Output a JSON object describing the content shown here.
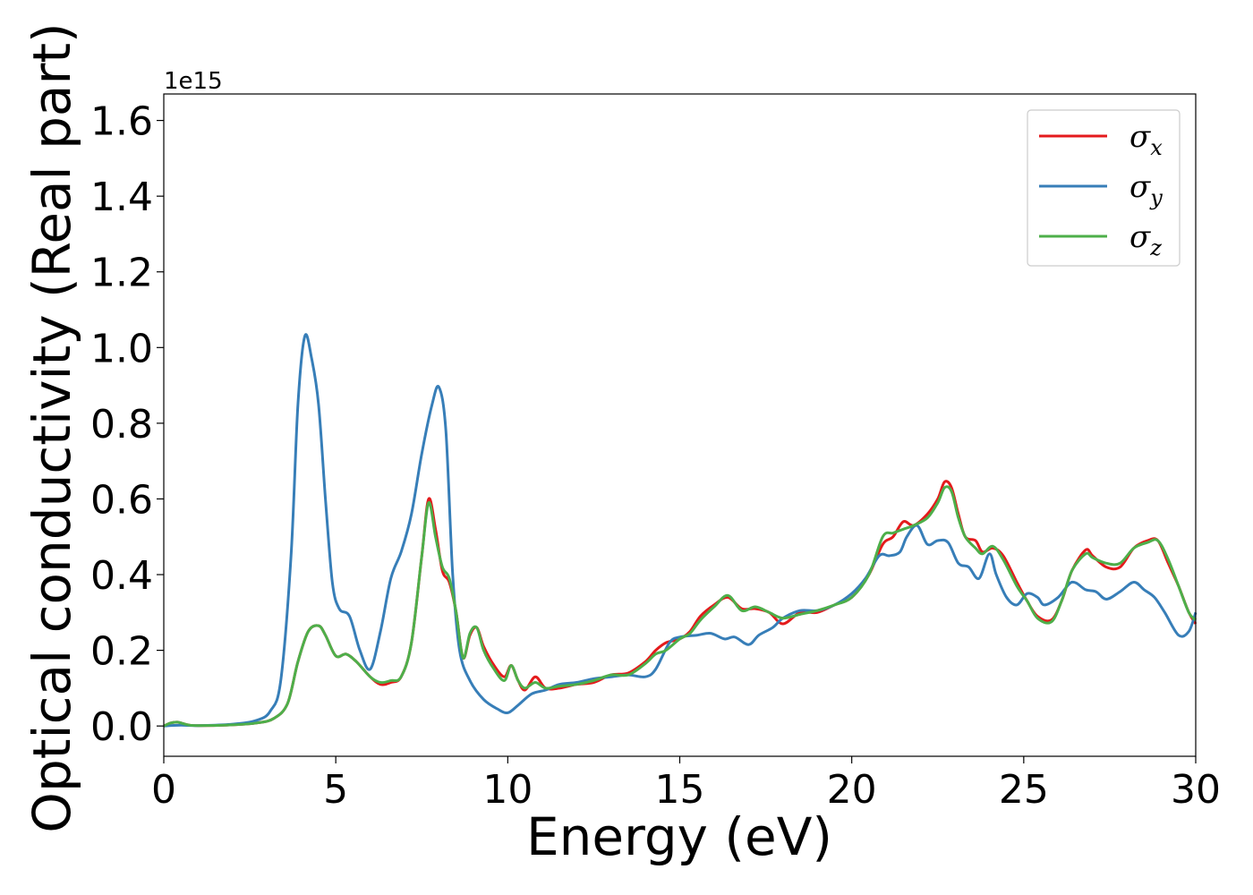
{
  "chart_data": {
    "type": "line",
    "xlabel": "Energy (eV)",
    "ylabel": "Optical conductivity (Real part)",
    "y_offset_text": "1e15",
    "xlim": [
      0,
      30
    ],
    "ylim": [
      -0.08,
      1.67
    ],
    "x_ticks": [
      0,
      5,
      10,
      15,
      20,
      25,
      30
    ],
    "x_tick_labels": [
      "0",
      "5",
      "10",
      "15",
      "20",
      "25",
      "30"
    ],
    "y_ticks": [
      0.0,
      0.2,
      0.4,
      0.6,
      0.8,
      1.0,
      1.2,
      1.4,
      1.6
    ],
    "y_tick_labels": [
      "0.0",
      "0.2",
      "0.4",
      "0.6",
      "0.8",
      "1.0",
      "1.2",
      "1.4",
      "1.6"
    ],
    "grid": false,
    "legend_position": "top-right",
    "series": [
      {
        "name": "σx",
        "legend_symbol": "σ",
        "legend_sub": "x",
        "color": "#e41a1c",
        "points": [
          [
            0,
            0.0
          ],
          [
            0.2,
            0.008
          ],
          [
            0.4,
            0.01
          ],
          [
            0.7,
            0.003
          ],
          [
            1.0,
            0.001
          ],
          [
            2.0,
            0.003
          ],
          [
            2.7,
            0.008
          ],
          [
            3.2,
            0.02
          ],
          [
            3.6,
            0.06
          ],
          [
            3.9,
            0.17
          ],
          [
            4.2,
            0.25
          ],
          [
            4.5,
            0.265
          ],
          [
            4.7,
            0.24
          ],
          [
            5.0,
            0.185
          ],
          [
            5.3,
            0.19
          ],
          [
            5.6,
            0.17
          ],
          [
            6.0,
            0.13
          ],
          [
            6.3,
            0.11
          ],
          [
            6.6,
            0.115
          ],
          [
            6.9,
            0.13
          ],
          [
            7.2,
            0.22
          ],
          [
            7.5,
            0.45
          ],
          [
            7.7,
            0.6
          ],
          [
            7.9,
            0.52
          ],
          [
            8.1,
            0.41
          ],
          [
            8.3,
            0.38
          ],
          [
            8.5,
            0.3
          ],
          [
            8.7,
            0.18
          ],
          [
            8.9,
            0.24
          ],
          [
            9.1,
            0.26
          ],
          [
            9.3,
            0.21
          ],
          [
            9.6,
            0.16
          ],
          [
            9.9,
            0.13
          ],
          [
            10.1,
            0.16
          ],
          [
            10.3,
            0.12
          ],
          [
            10.5,
            0.095
          ],
          [
            10.8,
            0.13
          ],
          [
            11.1,
            0.1
          ],
          [
            11.5,
            0.1
          ],
          [
            12.0,
            0.11
          ],
          [
            12.5,
            0.115
          ],
          [
            13.0,
            0.135
          ],
          [
            13.5,
            0.14
          ],
          [
            14.0,
            0.17
          ],
          [
            14.3,
            0.2
          ],
          [
            14.6,
            0.22
          ],
          [
            15.0,
            0.23
          ],
          [
            15.3,
            0.25
          ],
          [
            15.6,
            0.29
          ],
          [
            16.0,
            0.32
          ],
          [
            16.4,
            0.34
          ],
          [
            16.8,
            0.31
          ],
          [
            17.2,
            0.31
          ],
          [
            17.6,
            0.3
          ],
          [
            18.0,
            0.27
          ],
          [
            18.5,
            0.3
          ],
          [
            19.0,
            0.3
          ],
          [
            19.5,
            0.32
          ],
          [
            20.0,
            0.34
          ],
          [
            20.5,
            0.4
          ],
          [
            20.9,
            0.48
          ],
          [
            21.2,
            0.5
          ],
          [
            21.5,
            0.54
          ],
          [
            21.8,
            0.53
          ],
          [
            22.2,
            0.56
          ],
          [
            22.5,
            0.6
          ],
          [
            22.7,
            0.645
          ],
          [
            22.9,
            0.63
          ],
          [
            23.1,
            0.56
          ],
          [
            23.3,
            0.5
          ],
          [
            23.6,
            0.49
          ],
          [
            23.8,
            0.46
          ],
          [
            24.1,
            0.47
          ],
          [
            24.4,
            0.45
          ],
          [
            24.8,
            0.38
          ],
          [
            25.1,
            0.33
          ],
          [
            25.4,
            0.29
          ],
          [
            25.8,
            0.28
          ],
          [
            26.1,
            0.33
          ],
          [
            26.4,
            0.41
          ],
          [
            26.8,
            0.465
          ],
          [
            27.0,
            0.45
          ],
          [
            27.4,
            0.42
          ],
          [
            27.8,
            0.42
          ],
          [
            28.2,
            0.47
          ],
          [
            28.6,
            0.49
          ],
          [
            28.9,
            0.49
          ],
          [
            29.2,
            0.43
          ],
          [
            29.5,
            0.37
          ],
          [
            29.8,
            0.3
          ],
          [
            30.0,
            0.27
          ]
        ]
      },
      {
        "name": "σy",
        "legend_symbol": "σ",
        "legend_sub": "y",
        "color": "#377eb8",
        "points": [
          [
            0,
            0.0
          ],
          [
            0.5,
            0.002
          ],
          [
            1.0,
            0.001
          ],
          [
            2.0,
            0.005
          ],
          [
            2.7,
            0.015
          ],
          [
            3.1,
            0.04
          ],
          [
            3.4,
            0.12
          ],
          [
            3.7,
            0.45
          ],
          [
            3.9,
            0.85
          ],
          [
            4.1,
            1.03
          ],
          [
            4.3,
            0.97
          ],
          [
            4.5,
            0.85
          ],
          [
            4.7,
            0.6
          ],
          [
            4.9,
            0.38
          ],
          [
            5.1,
            0.31
          ],
          [
            5.4,
            0.29
          ],
          [
            5.7,
            0.2
          ],
          [
            6.0,
            0.15
          ],
          [
            6.3,
            0.25
          ],
          [
            6.6,
            0.39
          ],
          [
            6.9,
            0.46
          ],
          [
            7.2,
            0.56
          ],
          [
            7.5,
            0.72
          ],
          [
            7.8,
            0.85
          ],
          [
            8.0,
            0.895
          ],
          [
            8.2,
            0.78
          ],
          [
            8.4,
            0.4
          ],
          [
            8.6,
            0.2
          ],
          [
            8.9,
            0.12
          ],
          [
            9.3,
            0.07
          ],
          [
            9.7,
            0.045
          ],
          [
            10.0,
            0.035
          ],
          [
            10.3,
            0.055
          ],
          [
            10.7,
            0.085
          ],
          [
            11.1,
            0.095
          ],
          [
            11.5,
            0.11
          ],
          [
            12.0,
            0.115
          ],
          [
            12.5,
            0.125
          ],
          [
            13.0,
            0.13
          ],
          [
            13.5,
            0.135
          ],
          [
            14.0,
            0.13
          ],
          [
            14.3,
            0.15
          ],
          [
            14.7,
            0.22
          ],
          [
            15.0,
            0.235
          ],
          [
            15.5,
            0.24
          ],
          [
            15.9,
            0.245
          ],
          [
            16.3,
            0.23
          ],
          [
            16.6,
            0.235
          ],
          [
            17.0,
            0.215
          ],
          [
            17.3,
            0.24
          ],
          [
            17.7,
            0.26
          ],
          [
            18.0,
            0.285
          ],
          [
            18.5,
            0.305
          ],
          [
            19.0,
            0.305
          ],
          [
            19.5,
            0.32
          ],
          [
            20.0,
            0.35
          ],
          [
            20.4,
            0.39
          ],
          [
            20.8,
            0.45
          ],
          [
            21.1,
            0.45
          ],
          [
            21.4,
            0.46
          ],
          [
            21.6,
            0.5
          ],
          [
            21.9,
            0.53
          ],
          [
            22.2,
            0.48
          ],
          [
            22.5,
            0.49
          ],
          [
            22.8,
            0.485
          ],
          [
            23.1,
            0.43
          ],
          [
            23.4,
            0.42
          ],
          [
            23.7,
            0.39
          ],
          [
            24.0,
            0.455
          ],
          [
            24.2,
            0.4
          ],
          [
            24.5,
            0.34
          ],
          [
            24.8,
            0.32
          ],
          [
            25.1,
            0.35
          ],
          [
            25.4,
            0.34
          ],
          [
            25.6,
            0.32
          ],
          [
            26.0,
            0.34
          ],
          [
            26.4,
            0.38
          ],
          [
            26.8,
            0.36
          ],
          [
            27.1,
            0.355
          ],
          [
            27.4,
            0.335
          ],
          [
            27.8,
            0.355
          ],
          [
            28.2,
            0.38
          ],
          [
            28.5,
            0.36
          ],
          [
            28.8,
            0.34
          ],
          [
            29.1,
            0.3
          ],
          [
            29.5,
            0.24
          ],
          [
            29.8,
            0.25
          ],
          [
            30.0,
            0.3
          ]
        ]
      },
      {
        "name": "σz",
        "legend_symbol": "σ",
        "legend_sub": "z",
        "color": "#4daf4a",
        "points": [
          [
            0,
            0.0
          ],
          [
            0.2,
            0.008
          ],
          [
            0.4,
            0.01
          ],
          [
            0.7,
            0.003
          ],
          [
            1.0,
            0.001
          ],
          [
            2.0,
            0.003
          ],
          [
            2.7,
            0.008
          ],
          [
            3.2,
            0.02
          ],
          [
            3.6,
            0.06
          ],
          [
            3.9,
            0.17
          ],
          [
            4.2,
            0.25
          ],
          [
            4.5,
            0.265
          ],
          [
            4.7,
            0.24
          ],
          [
            5.0,
            0.185
          ],
          [
            5.3,
            0.19
          ],
          [
            5.6,
            0.17
          ],
          [
            6.0,
            0.13
          ],
          [
            6.3,
            0.115
          ],
          [
            6.6,
            0.12
          ],
          [
            6.9,
            0.13
          ],
          [
            7.2,
            0.22
          ],
          [
            7.5,
            0.45
          ],
          [
            7.7,
            0.59
          ],
          [
            7.9,
            0.5
          ],
          [
            8.1,
            0.42
          ],
          [
            8.3,
            0.39
          ],
          [
            8.5,
            0.3
          ],
          [
            8.7,
            0.18
          ],
          [
            8.9,
            0.245
          ],
          [
            9.1,
            0.26
          ],
          [
            9.3,
            0.2
          ],
          [
            9.6,
            0.15
          ],
          [
            9.9,
            0.12
          ],
          [
            10.1,
            0.16
          ],
          [
            10.3,
            0.12
          ],
          [
            10.5,
            0.1
          ],
          [
            10.8,
            0.115
          ],
          [
            11.1,
            0.1
          ],
          [
            11.5,
            0.105
          ],
          [
            12.0,
            0.11
          ],
          [
            12.5,
            0.12
          ],
          [
            13.0,
            0.135
          ],
          [
            13.5,
            0.135
          ],
          [
            14.0,
            0.165
          ],
          [
            14.3,
            0.19
          ],
          [
            14.6,
            0.2
          ],
          [
            15.0,
            0.23
          ],
          [
            15.3,
            0.245
          ],
          [
            15.6,
            0.28
          ],
          [
            16.0,
            0.315
          ],
          [
            16.4,
            0.345
          ],
          [
            16.8,
            0.305
          ],
          [
            17.2,
            0.315
          ],
          [
            17.6,
            0.3
          ],
          [
            18.0,
            0.285
          ],
          [
            18.5,
            0.295
          ],
          [
            19.0,
            0.305
          ],
          [
            19.5,
            0.32
          ],
          [
            20.0,
            0.34
          ],
          [
            20.5,
            0.4
          ],
          [
            20.9,
            0.5
          ],
          [
            21.2,
            0.51
          ],
          [
            21.5,
            0.52
          ],
          [
            21.8,
            0.53
          ],
          [
            22.2,
            0.55
          ],
          [
            22.5,
            0.59
          ],
          [
            22.7,
            0.63
          ],
          [
            22.9,
            0.62
          ],
          [
            23.1,
            0.55
          ],
          [
            23.3,
            0.5
          ],
          [
            23.6,
            0.47
          ],
          [
            23.8,
            0.455
          ],
          [
            24.1,
            0.475
          ],
          [
            24.4,
            0.44
          ],
          [
            24.8,
            0.37
          ],
          [
            25.1,
            0.33
          ],
          [
            25.4,
            0.285
          ],
          [
            25.8,
            0.275
          ],
          [
            26.1,
            0.33
          ],
          [
            26.4,
            0.41
          ],
          [
            26.8,
            0.455
          ],
          [
            27.0,
            0.445
          ],
          [
            27.4,
            0.43
          ],
          [
            27.8,
            0.43
          ],
          [
            28.2,
            0.47
          ],
          [
            28.6,
            0.485
          ],
          [
            28.9,
            0.49
          ],
          [
            29.2,
            0.44
          ],
          [
            29.5,
            0.37
          ],
          [
            29.8,
            0.3
          ],
          [
            30.0,
            0.28
          ]
        ]
      }
    ]
  }
}
